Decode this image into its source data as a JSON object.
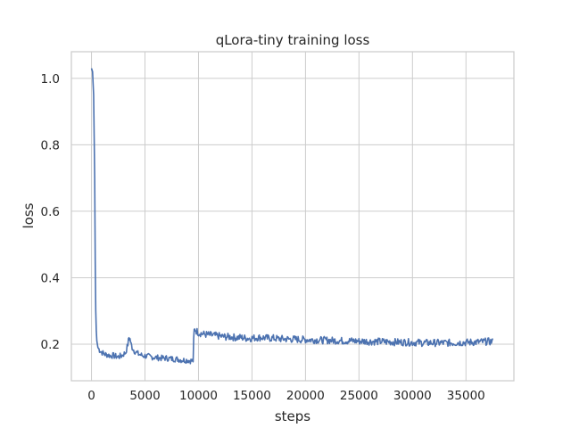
{
  "chart_data": {
    "type": "line",
    "title": "qLora-tiny training loss",
    "xlabel": "steps",
    "ylabel": "loss",
    "xlim": [
      -1880,
      39480
    ],
    "ylim": [
      0.09,
      1.08
    ],
    "x_ticks": [
      0,
      5000,
      10000,
      15000,
      20000,
      25000,
      30000,
      35000
    ],
    "x_tick_labels": [
      "0",
      "5000",
      "10000",
      "15000",
      "20000",
      "25000",
      "30000",
      "35000"
    ],
    "y_ticks": [
      0.2,
      0.4,
      0.6,
      0.8,
      1.0
    ],
    "y_tick_labels": [
      "0.2",
      "0.4",
      "0.6",
      "0.8",
      "1.0"
    ],
    "grid": true,
    "line_color": "#4c72b0",
    "grid_color": "#cccccc",
    "spine_color": "#cccccc",
    "series": [
      {
        "x": [
          0,
          100,
          200,
          300,
          350,
          400,
          450,
          500,
          550,
          600,
          700,
          800,
          1000,
          1200,
          1500,
          1800,
          2000,
          2200,
          2500,
          2800,
          3000,
          3200,
          3400,
          3500,
          3600,
          3700,
          3800,
          4000,
          4200,
          4400,
          4600,
          4800,
          5000,
          5500,
          6000,
          6500,
          7000,
          7500,
          8000,
          8500,
          9000,
          9300,
          9500,
          9550,
          9600,
          9700,
          9800,
          10000,
          10500,
          11000,
          11500,
          12000,
          12500,
          13000,
          13500,
          14000,
          14500,
          15000,
          15500,
          16000,
          16500,
          17000,
          17500,
          18000,
          18500,
          19000,
          19500,
          20000,
          20500,
          21000,
          21500,
          22000,
          22500,
          23000,
          23500,
          24000,
          24500,
          25000,
          25500,
          26000,
          26500,
          27000,
          27500,
          28000,
          28500,
          29000,
          29500,
          30000,
          30500,
          31000,
          31500,
          32000,
          32500,
          33000,
          33500,
          34000,
          34500,
          35000,
          35500,
          36000,
          36500,
          37000,
          37500
        ],
        "values": [
          1.03,
          1.02,
          0.95,
          0.7,
          0.45,
          0.3,
          0.24,
          0.21,
          0.2,
          0.19,
          0.185,
          0.18,
          0.175,
          0.17,
          0.168,
          0.165,
          0.166,
          0.164,
          0.162,
          0.165,
          0.17,
          0.175,
          0.2,
          0.22,
          0.215,
          0.2,
          0.19,
          0.18,
          0.175,
          0.17,
          0.168,
          0.165,
          0.165,
          0.162,
          0.16,
          0.158,
          0.158,
          0.156,
          0.155,
          0.152,
          0.152,
          0.15,
          0.15,
          0.21,
          0.24,
          0.245,
          0.24,
          0.235,
          0.23,
          0.228,
          0.226,
          0.224,
          0.222,
          0.222,
          0.22,
          0.22,
          0.218,
          0.218,
          0.22,
          0.22,
          0.218,
          0.218,
          0.216,
          0.216,
          0.215,
          0.215,
          0.214,
          0.214,
          0.213,
          0.213,
          0.212,
          0.212,
          0.211,
          0.211,
          0.21,
          0.21,
          0.21,
          0.209,
          0.209,
          0.208,
          0.208,
          0.208,
          0.207,
          0.207,
          0.206,
          0.206,
          0.206,
          0.205,
          0.205,
          0.204,
          0.204,
          0.204,
          0.204,
          0.204,
          0.204,
          0.204,
          0.205,
          0.205,
          0.206,
          0.206,
          0.207,
          0.208,
          0.208
        ]
      }
    ]
  }
}
